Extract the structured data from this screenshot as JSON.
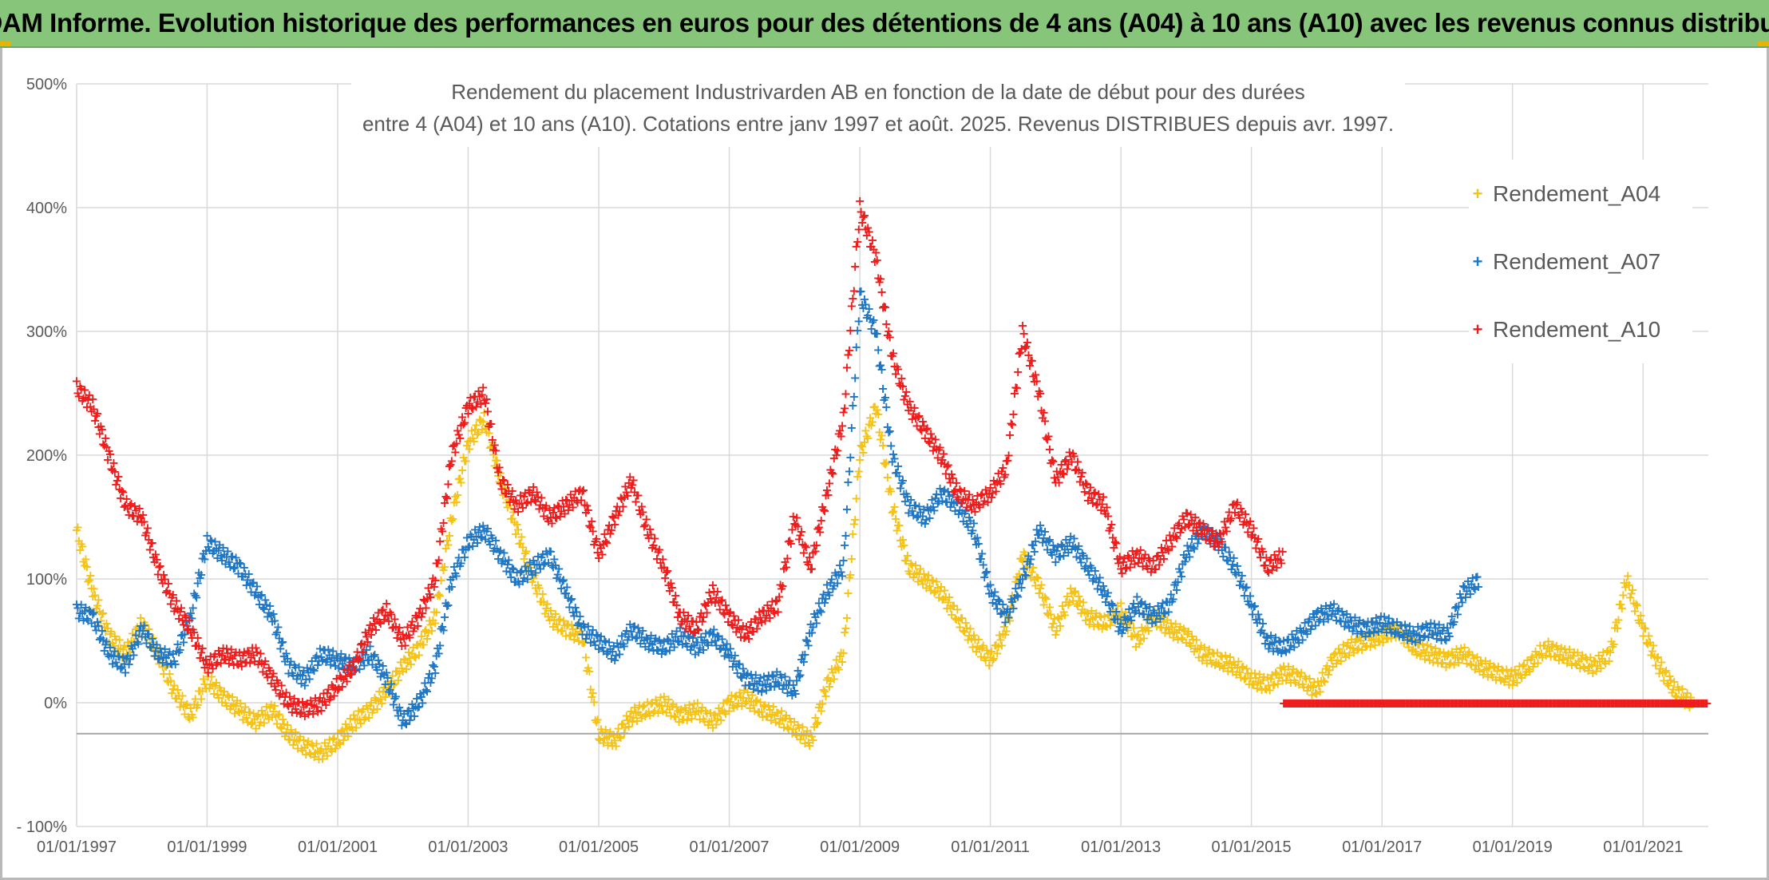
{
  "banner": {
    "title": "ADAM Informe. Evolution historique des performances en euros pour des détentions de 4 ans (A04) à 10 ans (A10) avec les revenus connus distribués"
  },
  "colors": {
    "banner_bg": "#86c57a",
    "a04": "#f5c216",
    "a07": "#1f77c4",
    "a10": "#ef1c1c",
    "grid": "#d9d9d9",
    "axis_text": "#595959"
  },
  "chart_data": {
    "type": "scatter",
    "title_line1": "Rendement du placement Industrivarden AB en fonction de la date de début pour des durées",
    "title_line2": "entre 4 (A04) et 10 ans (A10). Cotations entre janv 1997 et août. 2025. Revenus DISTRIBUES depuis avr. 1997.",
    "xlabel": "",
    "ylabel": "",
    "x_range": [
      "1997-01-01",
      "2022-01-01"
    ],
    "ylim": [
      -100,
      500
    ],
    "y_ticks": [
      500,
      400,
      300,
      200,
      100,
      0,
      -100
    ],
    "y_tick_labels": [
      "500%",
      "400%",
      "300%",
      "200%",
      "100%",
      "0%",
      "- 100%"
    ],
    "x_ticks": [
      "1997-01-01",
      "1999-01-01",
      "2001-01-01",
      "2003-01-01",
      "2005-01-01",
      "2007-01-01",
      "2009-01-01",
      "2011-01-01",
      "2013-01-01",
      "2015-01-01",
      "2017-01-01",
      "2019-01-01",
      "2021-01-01"
    ],
    "x_tick_labels": [
      "01/01/1997",
      "01/01/1999",
      "01/01/2001",
      "01/01/2003",
      "01/01/2005",
      "01/01/2007",
      "01/01/2009",
      "01/01/2011",
      "01/01/2013",
      "01/01/2015",
      "01/01/2017",
      "01/01/2019",
      "01/01/2021"
    ],
    "grid": true,
    "legend_position": "right",
    "marker": "+",
    "series": [
      {
        "name": "Rendement_A04",
        "color": "#f5c216",
        "x": [
          "1997-01-01",
          "1997-04-01",
          "1997-07-01",
          "1997-10-01",
          "1998-01-01",
          "1998-04-01",
          "1998-07-01",
          "1998-10-01",
          "1999-01-01",
          "1999-04-01",
          "1999-07-01",
          "1999-10-01",
          "2000-01-01",
          "2000-04-01",
          "2000-07-01",
          "2000-10-01",
          "2001-01-01",
          "2001-04-01",
          "2001-07-01",
          "2001-10-01",
          "2002-01-01",
          "2002-04-01",
          "2002-07-01",
          "2002-10-01",
          "2003-01-01",
          "2003-04-01",
          "2003-07-01",
          "2003-10-01",
          "2004-01-01",
          "2004-04-01",
          "2004-07-01",
          "2004-10-01",
          "2005-01-01",
          "2005-04-01",
          "2005-07-01",
          "2005-10-01",
          "2006-01-01",
          "2006-04-01",
          "2006-07-01",
          "2006-10-01",
          "2007-01-01",
          "2007-04-01",
          "2007-07-01",
          "2007-10-01",
          "2008-01-01",
          "2008-04-01",
          "2008-07-01",
          "2008-10-01",
          "2009-01-01",
          "2009-04-01",
          "2009-07-01",
          "2009-10-01",
          "2010-01-01",
          "2010-04-01",
          "2010-07-01",
          "2010-10-01",
          "2011-01-01",
          "2011-04-01",
          "2011-07-01",
          "2011-10-01",
          "2012-01-01",
          "2012-04-01",
          "2012-07-01",
          "2012-10-01",
          "2013-01-01",
          "2013-04-01",
          "2013-07-01",
          "2013-10-01",
          "2014-01-01",
          "2014-04-01",
          "2014-07-01",
          "2014-10-01",
          "2015-01-01",
          "2015-04-01",
          "2015-07-01",
          "2015-10-01",
          "2016-01-01",
          "2016-04-01",
          "2016-07-01",
          "2016-10-01",
          "2017-01-01",
          "2017-04-01",
          "2017-07-01",
          "2017-10-01",
          "2018-01-01",
          "2018-04-01",
          "2018-07-01",
          "2018-10-01",
          "2019-01-01",
          "2019-04-01",
          "2019-07-01",
          "2019-10-01",
          "2020-01-01",
          "2020-04-01",
          "2020-07-01",
          "2020-10-01",
          "2021-01-01",
          "2021-04-01",
          "2021-07-01",
          "2021-10-01"
        ],
        "y": [
          140,
          90,
          55,
          40,
          65,
          40,
          10,
          -10,
          20,
          5,
          -5,
          -15,
          -5,
          -25,
          -35,
          -40,
          -30,
          -15,
          -5,
          10,
          30,
          45,
          70,
          150,
          210,
          230,
          180,
          140,
          100,
          70,
          60,
          55,
          -25,
          -30,
          -10,
          -5,
          0,
          -10,
          -5,
          -15,
          0,
          5,
          -5,
          -10,
          -20,
          -30,
          15,
          40,
          200,
          240,
          160,
          110,
          100,
          90,
          70,
          50,
          35,
          60,
          120,
          95,
          60,
          90,
          70,
          65,
          75,
          50,
          70,
          60,
          55,
          40,
          35,
          30,
          20,
          15,
          25,
          20,
          10,
          35,
          45,
          50,
          55,
          60,
          45,
          40,
          35,
          40,
          30,
          25,
          20,
          30,
          45,
          40,
          35,
          30,
          40,
          100,
          60,
          30,
          10,
          0
        ]
      },
      {
        "name": "Rendement_A07",
        "color": "#1f77c4",
        "x": [
          "1997-01-01",
          "1997-04-01",
          "1997-07-01",
          "1997-10-01",
          "1998-01-01",
          "1998-04-01",
          "1998-07-01",
          "1998-10-01",
          "1999-01-01",
          "1999-04-01",
          "1999-07-01",
          "1999-10-01",
          "2000-01-01",
          "2000-04-01",
          "2000-07-01",
          "2000-10-01",
          "2001-01-01",
          "2001-04-01",
          "2001-07-01",
          "2001-10-01",
          "2002-01-01",
          "2002-04-01",
          "2002-07-01",
          "2002-10-01",
          "2003-01-01",
          "2003-04-01",
          "2003-07-01",
          "2003-10-01",
          "2004-01-01",
          "2004-04-01",
          "2004-07-01",
          "2004-10-01",
          "2005-01-01",
          "2005-04-01",
          "2005-07-01",
          "2005-10-01",
          "2006-01-01",
          "2006-04-01",
          "2006-07-01",
          "2006-10-01",
          "2007-01-01",
          "2007-04-01",
          "2007-07-01",
          "2007-10-01",
          "2008-01-01",
          "2008-04-01",
          "2008-07-01",
          "2008-10-01",
          "2009-01-01",
          "2009-04-01",
          "2009-07-01",
          "2009-10-01",
          "2010-01-01",
          "2010-04-01",
          "2010-07-01",
          "2010-10-01",
          "2011-01-01",
          "2011-04-01",
          "2011-07-01",
          "2011-10-01",
          "2012-01-01",
          "2012-04-01",
          "2012-07-01",
          "2012-10-01",
          "2013-01-01",
          "2013-04-01",
          "2013-07-01",
          "2013-10-01",
          "2014-01-01",
          "2014-04-01",
          "2014-07-01",
          "2014-10-01",
          "2015-01-01",
          "2015-04-01",
          "2015-07-01",
          "2015-10-01",
          "2016-01-01",
          "2016-04-01",
          "2016-07-01",
          "2016-10-01",
          "2017-01-01",
          "2017-04-01",
          "2017-07-01",
          "2017-10-01",
          "2018-01-01",
          "2018-04-01",
          "2018-07-01"
        ],
        "y": [
          75,
          70,
          40,
          30,
          60,
          40,
          35,
          70,
          130,
          120,
          110,
          90,
          70,
          30,
          20,
          40,
          35,
          30,
          40,
          20,
          -15,
          0,
          30,
          100,
          130,
          140,
          120,
          100,
          110,
          120,
          90,
          60,
          50,
          40,
          60,
          50,
          45,
          55,
          45,
          55,
          40,
          20,
          15,
          20,
          10,
          60,
          90,
          110,
          330,
          300,
          200,
          160,
          150,
          170,
          160,
          140,
          90,
          70,
          100,
          140,
          120,
          130,
          110,
          90,
          60,
          80,
          70,
          80,
          120,
          140,
          130,
          110,
          80,
          50,
          45,
          55,
          70,
          75,
          65,
          60,
          65,
          60,
          55,
          60,
          55,
          90,
          100
        ]
      },
      {
        "name": "Rendement_A10",
        "color": "#ef1c1c",
        "x": [
          "1997-01-01",
          "1997-04-01",
          "1997-07-01",
          "1997-10-01",
          "1998-01-01",
          "1998-04-01",
          "1998-07-01",
          "1998-10-01",
          "1999-01-01",
          "1999-04-01",
          "1999-07-01",
          "1999-10-01",
          "2000-01-01",
          "2000-04-01",
          "2000-07-01",
          "2000-10-01",
          "2001-01-01",
          "2001-04-01",
          "2001-07-01",
          "2001-10-01",
          "2002-01-01",
          "2002-04-01",
          "2002-07-01",
          "2002-10-01",
          "2003-01-01",
          "2003-04-01",
          "2003-07-01",
          "2003-10-01",
          "2004-01-01",
          "2004-04-01",
          "2004-07-01",
          "2004-10-01",
          "2005-01-01",
          "2005-04-01",
          "2005-07-01",
          "2005-10-01",
          "2006-01-01",
          "2006-04-01",
          "2006-07-01",
          "2006-10-01",
          "2007-01-01",
          "2007-04-01",
          "2007-07-01",
          "2007-10-01",
          "2008-01-01",
          "2008-04-01",
          "2008-07-01",
          "2008-10-01",
          "2009-01-01",
          "2009-04-01",
          "2009-07-01",
          "2009-10-01",
          "2010-01-01",
          "2010-04-01",
          "2010-07-01",
          "2010-10-01",
          "2011-01-01",
          "2011-04-01",
          "2011-07-01",
          "2011-10-01",
          "2012-01-01",
          "2012-04-01",
          "2012-07-01",
          "2012-10-01",
          "2013-01-01",
          "2013-04-01",
          "2013-07-01",
          "2013-10-01",
          "2014-01-01",
          "2014-04-01",
          "2014-07-01",
          "2014-10-01",
          "2015-01-01",
          "2015-04-01",
          "2015-07-01"
        ],
        "y": [
          255,
          240,
          200,
          160,
          150,
          110,
          80,
          60,
          30,
          40,
          35,
          40,
          20,
          0,
          -5,
          0,
          15,
          30,
          60,
          75,
          50,
          70,
          100,
          200,
          240,
          250,
          180,
          160,
          170,
          150,
          160,
          170,
          120,
          150,
          180,
          140,
          110,
          70,
          60,
          90,
          70,
          55,
          70,
          80,
          150,
          110,
          170,
          230,
          400,
          360,
          280,
          240,
          220,
          200,
          170,
          160,
          170,
          190,
          300,
          250,
          180,
          200,
          170,
          160,
          110,
          120,
          110,
          130,
          150,
          140,
          130,
          160,
          140,
          110,
          120
        ]
      },
      {
        "name": "",
        "color": "#ef1c1c",
        "note_points_flat": true,
        "x": [
          "2015-07-01",
          "2022-01-01"
        ],
        "y": [
          0,
          0
        ]
      }
    ]
  }
}
